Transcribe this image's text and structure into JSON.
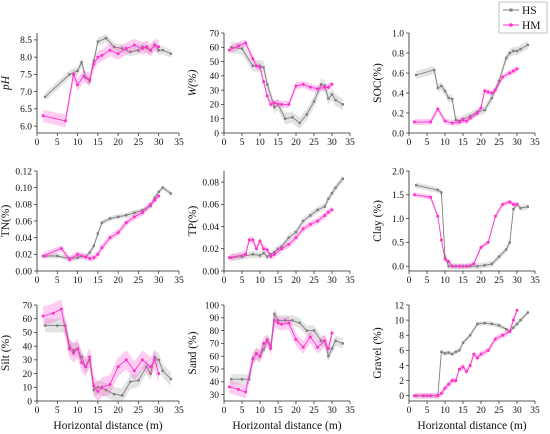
{
  "legend": {
    "placement": "top-right",
    "items": [
      {
        "label": "HS",
        "color": "#7f7f7f",
        "marker": "square"
      },
      {
        "label": "HM",
        "color": "#ff33cc",
        "marker": "circle"
      }
    ]
  },
  "chart_data": [
    {
      "type": "line",
      "id": "ph",
      "ylabel": "pH",
      "ylabel_italic": true,
      "xlabel": "",
      "xlim": [
        0,
        35
      ],
      "ylim": [
        5.8,
        8.7
      ],
      "xticks": [
        0,
        5,
        10,
        15,
        20,
        25,
        30,
        35
      ],
      "yticks": [
        6.0,
        6.5,
        7.0,
        7.5,
        8.0,
        8.5
      ],
      "series": [
        {
          "name": "HS",
          "color": "#7f7f7f",
          "band": 0.12,
          "x": [
            2,
            8,
            10,
            11,
            12,
            13,
            14,
            15,
            17,
            19,
            21,
            23,
            25,
            26,
            28,
            29,
            30,
            31,
            33
          ],
          "y": [
            6.85,
            7.5,
            7.6,
            7.85,
            7.4,
            7.3,
            7.9,
            8.45,
            8.55,
            8.3,
            8.25,
            8.15,
            8.2,
            8.3,
            8.2,
            8.35,
            8.2,
            8.2,
            8.1
          ]
        },
        {
          "name": "HM",
          "color": "#ff33cc",
          "band": 0.18,
          "x": [
            1.5,
            7,
            9,
            10,
            11.5,
            13,
            14,
            15,
            16,
            18,
            20,
            22,
            24,
            26,
            27,
            28,
            29,
            30
          ],
          "y": [
            6.3,
            6.15,
            7.5,
            7.2,
            7.45,
            7.35,
            7.8,
            8.0,
            8.05,
            8.2,
            8.1,
            8.25,
            8.35,
            8.25,
            8.3,
            8.2,
            8.35,
            8.3
          ]
        }
      ]
    },
    {
      "type": "line",
      "id": "w",
      "ylabel": "W(%)",
      "ylabel_italic": true,
      "xlabel": "",
      "xlim": [
        0,
        35
      ],
      "ylim": [
        0,
        70
      ],
      "xticks": [
        0,
        5,
        10,
        15,
        20,
        25,
        30,
        35
      ],
      "yticks": [
        0,
        10,
        20,
        30,
        40,
        50,
        60,
        70
      ],
      "series": [
        {
          "name": "HS",
          "color": "#7f7f7f",
          "band": 4,
          "x": [
            2,
            5,
            8,
            10,
            11,
            12,
            14,
            15,
            17,
            19,
            21,
            23,
            25,
            27,
            28,
            29,
            30,
            31,
            33
          ],
          "y": [
            60,
            59,
            47,
            47,
            46,
            34,
            18,
            20,
            10,
            11,
            7,
            13,
            22,
            34,
            33,
            24,
            27,
            23,
            20
          ]
        },
        {
          "name": "HM",
          "color": "#ff33cc",
          "band": 2.5,
          "x": [
            1.5,
            4,
            6,
            8,
            9,
            10,
            11,
            12,
            13,
            14,
            16,
            18,
            20,
            22,
            24,
            26,
            28,
            29,
            30
          ],
          "y": [
            58,
            61,
            63,
            52,
            47,
            46,
            36,
            26,
            20,
            21,
            20,
            20,
            33,
            34,
            32,
            31,
            32,
            32,
            34
          ]
        }
      ]
    },
    {
      "type": "line",
      "id": "soc",
      "ylabel": "SOC(%)",
      "ylabel_italic": false,
      "xlabel": "",
      "xlim": [
        0,
        35
      ],
      "ylim": [
        0,
        1.0
      ],
      "xticks": [
        0,
        5,
        10,
        15,
        20,
        25,
        30,
        35
      ],
      "yticks": [
        0.0,
        0.2,
        0.4,
        0.6,
        0.8,
        1.0
      ],
      "series": [
        {
          "name": "HS",
          "color": "#7f7f7f",
          "band": 0.04,
          "x": [
            2,
            7,
            8,
            9,
            10,
            11,
            12,
            13,
            14,
            15,
            17,
            19,
            21,
            23,
            25,
            27,
            28,
            29,
            30,
            31,
            33
          ],
          "y": [
            0.58,
            0.63,
            0.45,
            0.47,
            0.42,
            0.35,
            0.34,
            0.13,
            0.12,
            0.14,
            0.17,
            0.21,
            0.23,
            0.35,
            0.52,
            0.75,
            0.8,
            0.82,
            0.82,
            0.84,
            0.88
          ]
        },
        {
          "name": "HM",
          "color": "#ff33cc",
          "band": 0.03,
          "x": [
            1.5,
            6,
            8,
            10,
            12,
            14,
            15,
            16,
            17,
            19,
            20,
            21,
            22,
            23,
            24,
            26,
            28,
            29,
            30
          ],
          "y": [
            0.11,
            0.11,
            0.24,
            0.12,
            0.1,
            0.11,
            0.13,
            0.12,
            0.15,
            0.2,
            0.25,
            0.42,
            0.41,
            0.4,
            0.43,
            0.56,
            0.6,
            0.62,
            0.64
          ]
        }
      ]
    },
    {
      "type": "line",
      "id": "tn",
      "ylabel": "TN(%)",
      "ylabel_italic": false,
      "xlabel": "",
      "xlim": [
        0,
        35
      ],
      "ylim": [
        0,
        0.12
      ],
      "xticks": [
        0,
        5,
        10,
        15,
        20,
        25,
        30,
        35
      ],
      "yticks": [
        0.0,
        0.02,
        0.04,
        0.06,
        0.08,
        0.1,
        0.12
      ],
      "series": [
        {
          "name": "HS",
          "color": "#7f7f7f",
          "band": 0.003,
          "x": [
            2,
            5,
            8,
            10,
            11,
            12,
            13,
            14,
            15,
            16,
            18,
            20,
            22,
            24,
            26,
            28,
            29,
            30,
            31,
            33
          ],
          "y": [
            0.018,
            0.018,
            0.015,
            0.016,
            0.018,
            0.017,
            0.022,
            0.03,
            0.045,
            0.058,
            0.063,
            0.065,
            0.067,
            0.07,
            0.073,
            0.078,
            0.088,
            0.095,
            0.1,
            0.093
          ]
        },
        {
          "name": "HM",
          "color": "#ff33cc",
          "band": 0.004,
          "x": [
            1.5,
            6,
            8,
            10,
            12,
            13,
            14,
            15,
            16,
            18,
            20,
            22,
            24,
            26,
            28,
            29,
            30
          ],
          "y": [
            0.018,
            0.027,
            0.014,
            0.02,
            0.017,
            0.015,
            0.016,
            0.02,
            0.028,
            0.04,
            0.046,
            0.058,
            0.065,
            0.07,
            0.08,
            0.085,
            0.09
          ]
        }
      ]
    },
    {
      "type": "line",
      "id": "tp",
      "ylabel": "TP(%)",
      "ylabel_italic": false,
      "xlabel": "",
      "xlim": [
        0,
        35
      ],
      "ylim": [
        0,
        0.09
      ],
      "xticks": [
        0,
        5,
        10,
        15,
        20,
        25,
        30,
        35
      ],
      "yticks": [
        0.0,
        0.02,
        0.04,
        0.06,
        0.08
      ],
      "series": [
        {
          "name": "HS",
          "color": "#7f7f7f",
          "band": 0.003,
          "x": [
            2,
            5,
            8,
            10,
            11,
            12,
            13,
            14,
            15,
            16,
            18,
            20,
            22,
            24,
            26,
            28,
            29,
            30,
            31,
            33
          ],
          "y": [
            0.012,
            0.013,
            0.015,
            0.014,
            0.016,
            0.013,
            0.015,
            0.017,
            0.02,
            0.022,
            0.03,
            0.035,
            0.045,
            0.05,
            0.055,
            0.058,
            0.065,
            0.07,
            0.075,
            0.083
          ]
        },
        {
          "name": "HM",
          "color": "#ff33cc",
          "band": 0.003,
          "x": [
            1.5,
            6,
            7,
            8,
            9,
            10,
            11,
            12,
            13,
            14,
            16,
            18,
            20,
            22,
            24,
            26,
            28,
            29,
            30
          ],
          "y": [
            0.012,
            0.015,
            0.028,
            0.028,
            0.02,
            0.027,
            0.02,
            0.019,
            0.013,
            0.015,
            0.02,
            0.024,
            0.03,
            0.038,
            0.042,
            0.045,
            0.05,
            0.053,
            0.055
          ]
        }
      ]
    },
    {
      "type": "line",
      "id": "clay",
      "ylabel": "Clay (%)",
      "ylabel_italic": false,
      "xlabel": "",
      "xlim": [
        0,
        35
      ],
      "ylim": [
        -0.1,
        2.0
      ],
      "xticks": [
        0,
        5,
        10,
        15,
        20,
        25,
        30,
        35
      ],
      "yticks": [
        0.0,
        0.5,
        1.0,
        1.5,
        2.0
      ],
      "series": [
        {
          "name": "HS",
          "color": "#7f7f7f",
          "band": 0.06,
          "x": [
            2,
            8,
            9,
            10,
            11,
            13,
            15,
            17,
            19,
            21,
            23,
            25,
            27,
            28,
            29,
            30,
            31,
            33
          ],
          "y": [
            1.7,
            1.6,
            1.55,
            0.2,
            0.0,
            0.0,
            0.0,
            0.0,
            0.0,
            0.02,
            0.05,
            0.2,
            0.35,
            0.5,
            1.2,
            1.3,
            1.22,
            1.25
          ]
        },
        {
          "name": "HM",
          "color": "#ff33cc",
          "band": 0.05,
          "x": [
            1.5,
            6,
            8,
            9,
            10,
            11,
            12,
            14,
            16,
            18,
            20,
            22,
            24,
            26,
            28,
            29,
            30
          ],
          "y": [
            1.5,
            1.45,
            1.05,
            0.55,
            0.15,
            0.1,
            0.0,
            0.0,
            0.0,
            0.05,
            0.4,
            0.5,
            1.05,
            1.3,
            1.35,
            1.3,
            1.3
          ]
        }
      ]
    },
    {
      "type": "line",
      "id": "silt",
      "ylabel": "Silt (%)",
      "ylabel_italic": false,
      "xlabel": "Horizontal distance (m)",
      "xlim": [
        0,
        35
      ],
      "ylim": [
        0,
        70
      ],
      "xticks": [
        0,
        5,
        10,
        15,
        20,
        25,
        30,
        35
      ],
      "yticks": [
        0,
        10,
        20,
        30,
        40,
        50,
        60,
        70
      ],
      "series": [
        {
          "name": "HS",
          "color": "#7f7f7f",
          "band": 5,
          "x": [
            2,
            5,
            7,
            8,
            9,
            10,
            11,
            12,
            13,
            14,
            15,
            17,
            19,
            21,
            23,
            25,
            27,
            28,
            29,
            30,
            31,
            33
          ],
          "y": [
            55,
            55,
            55,
            40,
            37,
            38,
            32,
            25,
            30,
            8,
            10,
            8,
            5,
            4,
            14,
            15,
            25,
            20,
            32,
            30,
            22,
            16
          ]
        },
        {
          "name": "HM",
          "color": "#ff33cc",
          "band": 7,
          "x": [
            1.5,
            4,
            6,
            8,
            9,
            10,
            11,
            12,
            13,
            14,
            15,
            16,
            18,
            20,
            22,
            24,
            26,
            28,
            29,
            30
          ],
          "y": [
            62,
            64,
            67,
            38,
            35,
            38,
            28,
            25,
            32,
            11,
            7,
            10,
            12,
            25,
            30,
            22,
            30,
            25,
            30,
            20
          ]
        }
      ]
    },
    {
      "type": "line",
      "id": "sand",
      "ylabel": "Sand (%)",
      "ylabel_italic": false,
      "xlabel": "Horizontal distance (m)",
      "xlim": [
        0,
        35
      ],
      "ylim": [
        25,
        100
      ],
      "xticks": [
        0,
        5,
        10,
        15,
        20,
        25,
        30,
        35
      ],
      "yticks": [
        30,
        40,
        50,
        60,
        70,
        80,
        90,
        100
      ],
      "series": [
        {
          "name": "HS",
          "color": "#7f7f7f",
          "band": 4,
          "x": [
            2,
            5,
            7,
            8,
            9,
            10,
            11,
            12,
            13,
            14,
            15,
            17,
            19,
            21,
            23,
            25,
            27,
            28,
            29,
            30,
            31,
            33
          ],
          "y": [
            42,
            42,
            42,
            58,
            62,
            60,
            65,
            73,
            68,
            93,
            88,
            88,
            88,
            86,
            80,
            80,
            72,
            72,
            60,
            66,
            72,
            70
          ]
        },
        {
          "name": "HM",
          "color": "#ff33cc",
          "band": 5,
          "x": [
            1.5,
            4,
            6,
            8,
            9,
            10,
            11,
            12,
            13,
            14,
            15,
            16,
            18,
            20,
            22,
            24,
            26,
            28,
            29,
            30
          ],
          "y": [
            36,
            34,
            32,
            58,
            62,
            60,
            70,
            72,
            66,
            88,
            86,
            85,
            86,
            73,
            67,
            75,
            67,
            72,
            66,
            78
          ]
        }
      ]
    },
    {
      "type": "line",
      "id": "gravel",
      "ylabel": "Gravel (%)",
      "ylabel_italic": false,
      "xlabel": "Horizontal distance (m)",
      "xlim": [
        0,
        35
      ],
      "ylim": [
        -0.7,
        12
      ],
      "xticks": [
        0,
        5,
        10,
        15,
        20,
        25,
        30,
        35
      ],
      "yticks": [
        0,
        2,
        4,
        6,
        8,
        10,
        12
      ],
      "series": [
        {
          "name": "HS",
          "color": "#7f7f7f",
          "band": 0.3,
          "x": [
            2,
            5,
            8,
            9,
            10,
            11,
            12,
            13,
            14,
            15,
            17,
            19,
            21,
            23,
            25,
            27,
            28,
            29,
            30,
            31,
            33
          ],
          "y": [
            0,
            0,
            0,
            5.8,
            5.6,
            5.7,
            5.5,
            5.8,
            6.0,
            7.0,
            8.0,
            9.5,
            9.6,
            9.5,
            9.3,
            8.8,
            8.5,
            9.0,
            9.5,
            10.0,
            11.0
          ]
        },
        {
          "name": "HM",
          "color": "#ff33cc",
          "band": 0.4,
          "x": [
            1.5,
            4,
            6,
            8,
            9,
            10,
            11,
            12,
            13,
            14,
            15,
            16,
            17,
            18,
            19,
            20,
            22,
            24,
            26,
            28,
            29,
            30
          ],
          "y": [
            0,
            0,
            0,
            0,
            0.3,
            1.0,
            1.5,
            2.0,
            2.0,
            3.5,
            3.8,
            3.2,
            4.0,
            5.5,
            5.0,
            5.5,
            6.0,
            7.5,
            8.0,
            8.5,
            10.0,
            11.3
          ]
        }
      ]
    }
  ]
}
